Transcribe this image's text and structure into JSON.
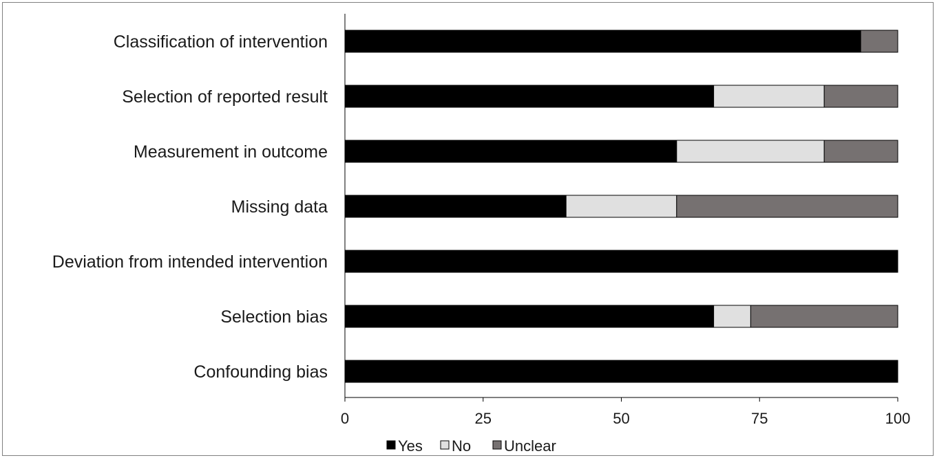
{
  "chart_data": {
    "type": "bar",
    "orientation": "horizontal",
    "stacked": true,
    "title": "",
    "xlabel": "",
    "ylabel": "",
    "xlim": [
      0,
      100
    ],
    "xticks": [
      "0",
      "25",
      "50",
      "75",
      "100"
    ],
    "grid": false,
    "legend_position": "bottom",
    "categories": [
      "Classification of intervention",
      "Selection of reported result",
      "Measurement in outcome",
      "Missing data",
      "Deviation from intended intervention",
      "Selection bias",
      "Confounding bias"
    ],
    "series": [
      {
        "name": "Yes",
        "color": "#000000",
        "values": [
          93.3,
          66.7,
          60,
          40,
          100,
          66.7,
          100
        ]
      },
      {
        "name": "No",
        "color": "#e0e0e0",
        "values": [
          0,
          20,
          26.7,
          20,
          0,
          6.7,
          0
        ]
      },
      {
        "name": "Unclear",
        "color": "#767171",
        "values": [
          6.7,
          13.3,
          13.3,
          40,
          0,
          26.6,
          0
        ]
      }
    ]
  }
}
